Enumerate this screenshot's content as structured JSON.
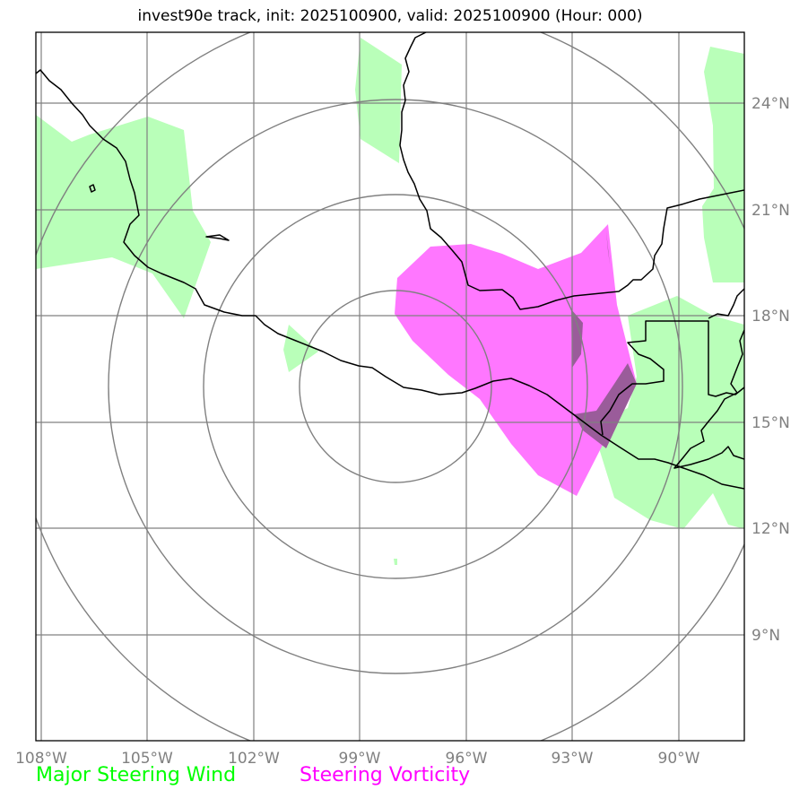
{
  "title": "invest90e track, init: 2025100900, valid: 2025100900 (Hour: 000)",
  "map": {
    "lon_range": [
      -108.2,
      -88.2
    ],
    "lat_range": [
      6.1,
      26.1
    ],
    "lon_ticks": [
      {
        "value": -108,
        "label": "108°W"
      },
      {
        "value": -105,
        "label": "105°W"
      },
      {
        "value": -102,
        "label": "102°W"
      },
      {
        "value": -99,
        "label": "99°W"
      },
      {
        "value": -96,
        "label": "96°W"
      },
      {
        "value": -93,
        "label": "93°W"
      },
      {
        "value": -90,
        "label": "90°W"
      }
    ],
    "lat_ticks": [
      {
        "value": 9,
        "label": "9°N"
      },
      {
        "value": 12,
        "label": "12°N"
      },
      {
        "value": 15,
        "label": "15°N"
      },
      {
        "value": 18,
        "label": "18°N"
      },
      {
        "value": 21,
        "label": "21°N"
      },
      {
        "value": 24,
        "label": "24°N"
      }
    ],
    "grid": true,
    "range_rings_center": {
      "lon": -98.2,
      "lat": 16.1
    }
  },
  "legend": {
    "wind_label": "Major Steering Wind",
    "wind_color": "#00ff00",
    "vorticity_label": "Steering Vorticity",
    "vorticity_color": "#ff00ff"
  },
  "colors": {
    "wind_fill": "#b9ffb9",
    "vorticity_fill": "#ff77ff",
    "overlap_fill": "#9a5c9a",
    "grid": "#808080",
    "coast": "#000000"
  }
}
